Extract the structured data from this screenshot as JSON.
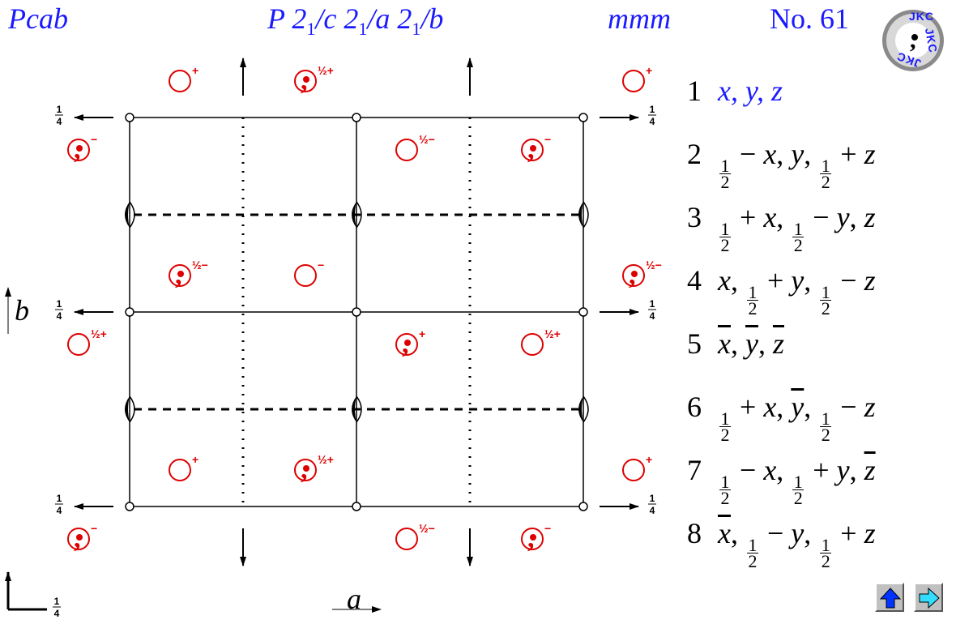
{
  "header": {
    "short_symbol": "Pcab",
    "full_symbol": {
      "parts": [
        "P 2",
        "1",
        "/c 2",
        "1",
        "/a 2",
        "1",
        "/b"
      ]
    },
    "point_group": "mmm",
    "number": "No. 61"
  },
  "logo": {
    "text": "JKC"
  },
  "positions": [
    {
      "n": "1",
      "coords": [
        [
          "x"
        ],
        [
          "y"
        ],
        [
          "z"
        ]
      ]
    },
    {
      "n": "2",
      "coords": [
        [
          "h",
          "−",
          "x"
        ],
        [
          "y"
        ],
        [
          "h",
          "+",
          "z"
        ]
      ]
    },
    {
      "n": "3",
      "coords": [
        [
          "h",
          "+",
          "x"
        ],
        [
          "h",
          "−",
          "y"
        ],
        [
          "z"
        ]
      ]
    },
    {
      "n": "4",
      "coords": [
        [
          "x"
        ],
        [
          "h",
          "+",
          "y"
        ],
        [
          "h",
          "−",
          "z"
        ]
      ]
    },
    {
      "n": "5",
      "coords": [
        [
          "x̄"
        ],
        [
          "ȳ"
        ],
        [
          "z̄"
        ]
      ]
    },
    {
      "n": "6",
      "coords": [
        [
          "h",
          "+",
          "x"
        ],
        [
          "ȳ"
        ],
        [
          "h",
          "−",
          "z"
        ]
      ]
    },
    {
      "n": "7",
      "coords": [
        [
          "h",
          "−",
          "x"
        ],
        [
          "h",
          "+",
          "y"
        ],
        [
          "z̄"
        ]
      ]
    },
    {
      "n": "8",
      "coords": [
        [
          "x̄"
        ],
        [
          "h",
          "−",
          "y"
        ],
        [
          "h",
          "+",
          "z"
        ]
      ]
    }
  ],
  "diagram": {
    "axis_b_label": "b",
    "axis_a_label": "a",
    "quarter": {
      "num": "1",
      "den": "4"
    },
    "colors": {
      "symbol": "#dd0000",
      "lines": "#000000",
      "header": "#1a1aff"
    },
    "general_positions": [
      {
        "id": "p1",
        "comma": false,
        "sign": "+"
      },
      {
        "id": "p2",
        "comma": true,
        "sign": "½+"
      },
      {
        "id": "p3",
        "comma": false,
        "sign": "+"
      },
      {
        "id": "p4",
        "comma": true,
        "sign": "−"
      },
      {
        "id": "p5",
        "comma": false,
        "sign": "½−"
      },
      {
        "id": "p6",
        "comma": true,
        "sign": "−"
      },
      {
        "id": "p7",
        "comma": true,
        "sign": "½−"
      },
      {
        "id": "p8",
        "comma": false,
        "sign": "−"
      },
      {
        "id": "p9",
        "comma": true,
        "sign": "½−"
      },
      {
        "id": "p10",
        "comma": false,
        "sign": "½+"
      },
      {
        "id": "p11",
        "comma": true,
        "sign": "+"
      },
      {
        "id": "p12",
        "comma": false,
        "sign": "½+"
      },
      {
        "id": "p13",
        "comma": false,
        "sign": "+"
      },
      {
        "id": "p14",
        "comma": true,
        "sign": "½+"
      },
      {
        "id": "p15",
        "comma": false,
        "sign": "+"
      },
      {
        "id": "p16",
        "comma": true,
        "sign": "−"
      },
      {
        "id": "p17",
        "comma": false,
        "sign": "½−"
      },
      {
        "id": "p18",
        "comma": true,
        "sign": "−"
      }
    ]
  },
  "navigation": {
    "up_icon": "arrow-up-icon",
    "next_icon": "arrow-right-icon"
  }
}
